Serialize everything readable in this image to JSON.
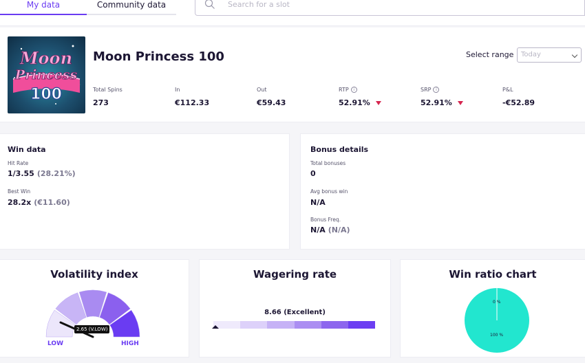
{
  "tabs": {
    "my_data": "My data",
    "community_data": "Community data"
  },
  "search": {
    "placeholder": "Search for a slot"
  },
  "slot": {
    "title": "Moon Princess 100",
    "thumb_text": {
      "line1": "Moon",
      "line2": "Princess",
      "line3": "100"
    },
    "select_range_label": "Select range",
    "range_value": "Today",
    "stats": [
      {
        "label": "Total Spins",
        "value": "273"
      },
      {
        "label": "In",
        "value": "€112.33"
      },
      {
        "label": "Out",
        "value": "€59.43"
      },
      {
        "label": "RTP",
        "value": "52.91%"
      },
      {
        "label": "SRP",
        "value": "52.91%"
      },
      {
        "label": "P&L",
        "value": "-€52.89"
      }
    ]
  },
  "win_data": {
    "title": "Win data",
    "hit_rate_label": "Hit Rate",
    "hit_rate_value": "1/3.55",
    "hit_rate_pct": "(28.21%)",
    "best_win_label": "Best Win",
    "best_win_value": "28.2x",
    "best_win_amount": "(€11.60)"
  },
  "bonus_details": {
    "title": "Bonus details",
    "total_bonuses_label": "Total bonuses",
    "total_bonuses_value": "0",
    "avg_bonus_win_label": "Avg bonus win",
    "avg_bonus_win_value": "N/A",
    "bonus_freq_label": "Bonus Freq.",
    "bonus_freq_value": "N/A",
    "bonus_freq_pct": "(N/A)"
  },
  "volatility": {
    "title": "Volatility index",
    "low_label": "LOW",
    "high_label": "HIGH",
    "tooltip": "2.65 (V.LOW)",
    "segment_colors": [
      "#ece6fb",
      "#c8b5f6",
      "#a98bf1",
      "#8b60ee",
      "#6a3cf2"
    ]
  },
  "wagering": {
    "title": "Wagering rate",
    "value": "8.66 (Excellent)",
    "segment_colors": [
      "#efeafc",
      "#ddd1fa",
      "#c6b2f6",
      "#ab8ef2",
      "#8d66ee",
      "#6c3ef2"
    ]
  },
  "win_ratio": {
    "title": "Win ratio chart",
    "color": "#22e6cf",
    "top_label": "0 %",
    "bottom_label": "100 %"
  },
  "colors": {
    "accent": "#6a3cf2",
    "negative": "#d6264f"
  }
}
